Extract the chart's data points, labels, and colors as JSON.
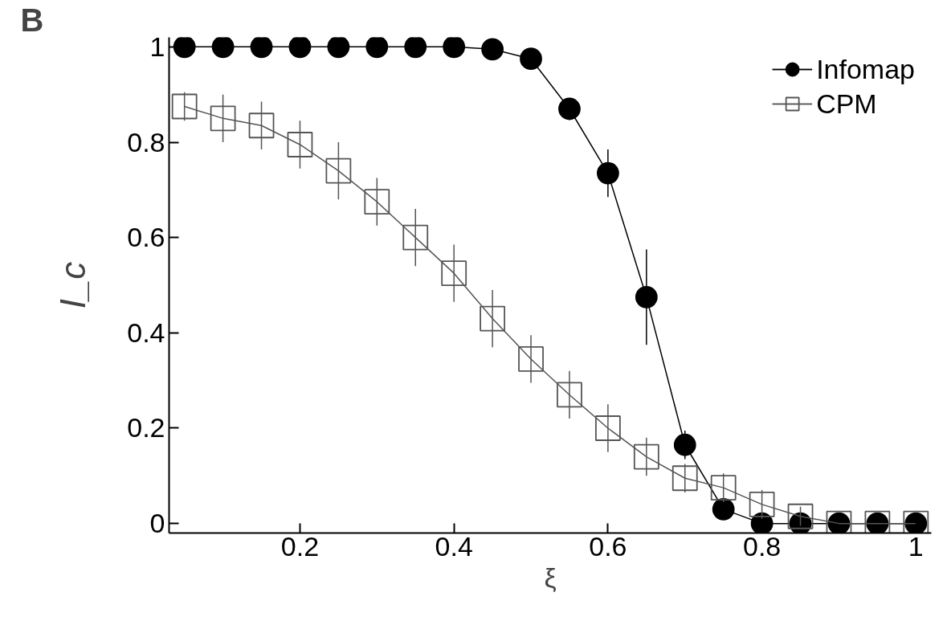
{
  "chart_data": {
    "type": "line",
    "xlabel": "ξ",
    "ylabel": "I_c",
    "annotations": [
      "B"
    ],
    "x": [
      0.05,
      0.1,
      0.15,
      0.2,
      0.25,
      0.3,
      0.35,
      0.4,
      0.45,
      0.5,
      0.55,
      0.6,
      0.65,
      0.7,
      0.75,
      0.8,
      0.85,
      0.9,
      0.95,
      1.0
    ],
    "series": [
      {
        "name": "Infomap",
        "color": "#000000",
        "marker": "circle",
        "values": [
          1,
          1,
          1,
          1,
          1,
          1,
          1,
          1,
          0.995,
          0.975,
          0.87,
          0.735,
          0.475,
          0.165,
          0.03,
          0,
          0,
          0,
          0,
          0
        ],
        "errors": [
          null,
          null,
          null,
          null,
          null,
          null,
          null,
          null,
          null,
          null,
          null,
          0.05,
          0.1,
          0.03,
          null,
          null,
          null,
          null,
          null,
          null
        ]
      },
      {
        "name": "CPM",
        "color": "#555555",
        "marker": "square",
        "values": [
          0.875,
          0.85,
          0.835,
          0.795,
          0.74,
          0.675,
          0.6,
          0.525,
          0.43,
          0.345,
          0.27,
          0.2,
          0.14,
          0.095,
          0.075,
          0.04,
          0.015,
          0,
          0,
          0
        ],
        "errors": [
          0.03,
          0.05,
          0.05,
          0.05,
          0.06,
          0.05,
          0.06,
          0.06,
          0.06,
          0.05,
          0.05,
          0.05,
          0.04,
          0.03,
          0.03,
          0.03,
          0.02,
          null,
          null,
          null
        ]
      }
    ],
    "xlim": [
      0.03,
      1.02
    ],
    "ylim": [
      -0.02,
      1.02
    ],
    "xticks": [
      0.2,
      0.4,
      0.6,
      0.8,
      1
    ],
    "yticks": [
      0,
      0.2,
      0.4,
      0.6,
      0.8,
      1
    ],
    "grid": false,
    "legend": "top right",
    "line_style": "solid"
  }
}
